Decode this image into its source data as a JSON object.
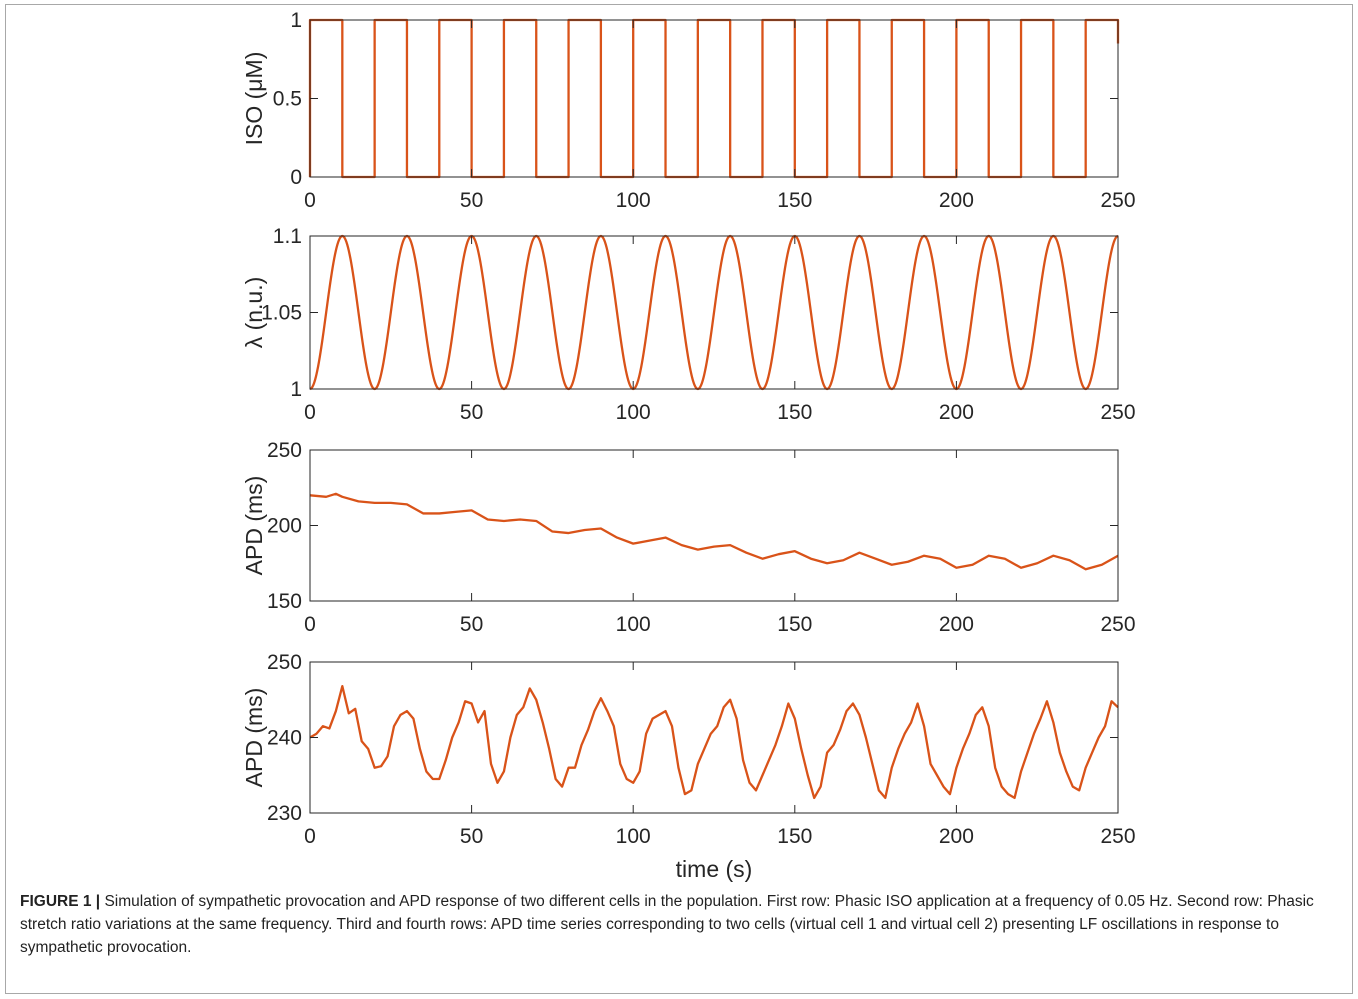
{
  "figure": {
    "caption_label": "FIGURE 1 |",
    "caption_text": " Simulation of sympathetic provocation and APD response of two different cells in the population. First row: Phasic ISO application at a frequency of 0.05 Hz. Second row: Phasic stretch ratio variations at the same frequency. Third and fourth rows: APD time series corresponding to two cells (virtual cell 1 and virtual cell 2) presenting LF oscillations in response to sympathetic provocation."
  },
  "colors": {
    "line": "#d95319",
    "axis": "#262626"
  },
  "chart_data": [
    {
      "type": "line",
      "panel": "iso",
      "ylabel": "ISO (μM)",
      "xlabel": "",
      "xlim": [
        0,
        250
      ],
      "ylim": [
        0,
        1
      ],
      "xticks": [
        0,
        50,
        100,
        150,
        200,
        250
      ],
      "yticks": [
        0,
        0.5,
        1
      ],
      "grid": false,
      "series": [
        {
          "x": [
            0,
            0,
            10,
            10,
            20,
            20,
            30,
            30,
            40,
            40,
            50,
            50,
            60,
            60,
            70,
            70,
            80,
            80,
            90,
            90,
            100,
            100,
            110,
            110,
            120,
            120,
            130,
            130,
            140,
            140,
            150,
            150,
            160,
            160,
            170,
            170,
            180,
            180,
            190,
            190,
            200,
            200,
            210,
            210,
            220,
            220,
            230,
            230,
            240,
            240,
            250,
            250
          ],
          "values": [
            0,
            1,
            1,
            0,
            0,
            1,
            1,
            0,
            0,
            1,
            1,
            0,
            0,
            1,
            1,
            0,
            0,
            1,
            1,
            0,
            0,
            1,
            1,
            0,
            0,
            1,
            1,
            0,
            0,
            1,
            1,
            0,
            0,
            1,
            1,
            0,
            0,
            1,
            1,
            0,
            0,
            1,
            1,
            0,
            0,
            1,
            1,
            0,
            0,
            1,
            1,
            0.85
          ]
        }
      ]
    },
    {
      "type": "line",
      "panel": "lambda",
      "ylabel": "λ  (n.u.)",
      "xlabel": "",
      "xlim": [
        0,
        250
      ],
      "ylim": [
        1,
        1.1
      ],
      "xticks": [
        0,
        50,
        100,
        150,
        200,
        250
      ],
      "yticks": [
        1,
        1.05,
        1.1
      ],
      "grid": false,
      "series": [
        {
          "function": "1 + 0.05*(1 - cos(2*pi*0.05*t))",
          "period": 20,
          "min": 1,
          "max": 1.1
        }
      ]
    },
    {
      "type": "line",
      "panel": "apd-cell1",
      "ylabel": "APD (ms)",
      "xlabel": "",
      "xlim": [
        0,
        250
      ],
      "ylim": [
        150,
        250
      ],
      "xticks": [
        0,
        50,
        100,
        150,
        200,
        250
      ],
      "yticks": [
        150,
        200,
        250
      ],
      "grid": false,
      "series": [
        {
          "x": [
            0,
            5,
            8,
            10,
            15,
            20,
            25,
            30,
            35,
            40,
            45,
            50,
            55,
            60,
            65,
            70,
            75,
            80,
            85,
            90,
            95,
            100,
            105,
            110,
            115,
            120,
            125,
            130,
            135,
            140,
            145,
            150,
            155,
            160,
            165,
            170,
            175,
            180,
            185,
            190,
            195,
            200,
            205,
            210,
            215,
            220,
            225,
            230,
            235,
            240,
            245,
            250
          ],
          "values": [
            220,
            219,
            221,
            219,
            216,
            215,
            215,
            214,
            208,
            208,
            209,
            210,
            204,
            203,
            204,
            203,
            196,
            195,
            197,
            198,
            192,
            188,
            190,
            192,
            187,
            184,
            186,
            187,
            182,
            178,
            181,
            183,
            178,
            175,
            177,
            182,
            178,
            174,
            176,
            180,
            178,
            172,
            174,
            180,
            178,
            172,
            175,
            180,
            177,
            171,
            174,
            180
          ]
        }
      ]
    },
    {
      "type": "line",
      "panel": "apd-cell2",
      "ylabel": "APD (ms)",
      "xlabel": "time (s)",
      "xlim": [
        0,
        250
      ],
      "ylim": [
        230,
        250
      ],
      "xticks": [
        0,
        50,
        100,
        150,
        200,
        250
      ],
      "yticks": [
        230,
        240,
        250
      ],
      "grid": false,
      "series": [
        {
          "x": [
            0,
            2,
            4,
            6,
            8,
            10,
            12,
            14,
            16,
            18,
            20,
            22,
            24,
            26,
            28,
            30,
            32,
            34,
            36,
            38,
            40,
            42,
            44,
            46,
            48,
            50,
            52,
            54,
            56,
            58,
            60,
            62,
            64,
            66,
            68,
            70,
            72,
            74,
            76,
            78,
            80,
            82,
            84,
            86,
            88,
            90,
            92,
            94,
            96,
            98,
            100,
            102,
            104,
            106,
            108,
            110,
            112,
            114,
            116,
            118,
            120,
            122,
            124,
            126,
            128,
            130,
            132,
            134,
            136,
            138,
            140,
            142,
            144,
            146,
            148,
            150,
            152,
            154,
            156,
            158,
            160,
            162,
            164,
            166,
            168,
            170,
            172,
            174,
            176,
            178,
            180,
            182,
            184,
            186,
            188,
            190,
            192,
            194,
            196,
            198,
            200,
            202,
            204,
            206,
            208,
            210,
            212,
            214,
            216,
            218,
            220,
            222,
            224,
            226,
            228,
            230,
            232,
            234,
            236,
            238,
            240,
            242,
            244,
            246,
            248,
            250
          ],
          "values": [
            240,
            240.5,
            241.5,
            241.2,
            243.5,
            246.8,
            243.2,
            243.8,
            239.5,
            238.5,
            236,
            236.2,
            237.5,
            241.5,
            243,
            243.5,
            242.5,
            238.5,
            235.5,
            234.5,
            234.5,
            237,
            240,
            242,
            244.8,
            244.5,
            242,
            243.5,
            236.5,
            234,
            235.5,
            240,
            243,
            244,
            246.5,
            245,
            242,
            238.5,
            234.5,
            233.5,
            236,
            236,
            239,
            241,
            243.5,
            245.2,
            243.5,
            241.5,
            236.5,
            234.5,
            234,
            235.5,
            240.5,
            242.5,
            243,
            243.5,
            241.5,
            236,
            232.5,
            233,
            236.5,
            238.5,
            240.5,
            241.5,
            244,
            245,
            242.5,
            237,
            234,
            233,
            235,
            237,
            239,
            241.5,
            244.5,
            242.5,
            238.5,
            235,
            232,
            233.5,
            238,
            239,
            241,
            243.5,
            244.5,
            243,
            240,
            236.5,
            233,
            232,
            236,
            238.5,
            240.5,
            242,
            244.5,
            241.5,
            236.5,
            235,
            233.5,
            232.5,
            236,
            238.5,
            240.5,
            243,
            244,
            241.5,
            236,
            233.5,
            232.5,
            232,
            235.5,
            238,
            240.5,
            242.5,
            244.8,
            242,
            238,
            235.5,
            233.5,
            233,
            236,
            238,
            240,
            241.5,
            244.8,
            244
          ]
        }
      ]
    }
  ]
}
